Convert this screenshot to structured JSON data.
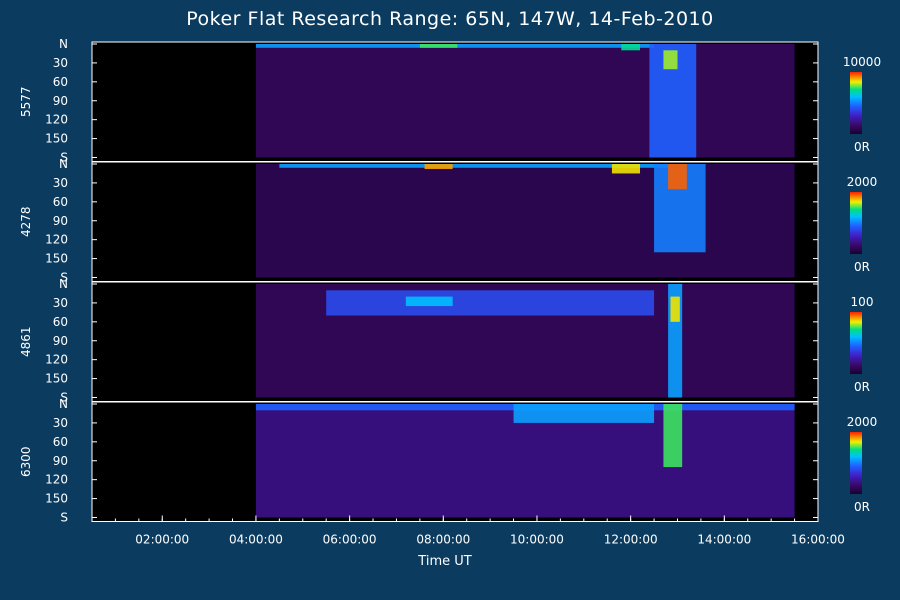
{
  "title": "Poker Flat Research Range: 65N, 147W, 14-Feb-2010",
  "chart_data": {
    "type": "heatmap",
    "title": "Poker Flat Research Range: 65N, 147W, 14-Feb-2010",
    "xlabel": "Time UT",
    "x_ticks": [
      "02:00:00",
      "04:00:00",
      "06:00:00",
      "08:00:00",
      "10:00:00",
      "12:00:00",
      "14:00:00",
      "16:00:00"
    ],
    "x_range_hours": [
      0.5,
      16.0
    ],
    "data_start_hour": 4.0,
    "y_ticks": [
      "N",
      "30",
      "60",
      "90",
      "120",
      "150",
      "S"
    ],
    "y_tick_values": [
      0,
      30,
      60,
      90,
      120,
      150,
      180
    ],
    "y_range": [
      0,
      180
    ],
    "colorbar_min_label": "0R",
    "panels": [
      {
        "wavelength": "5577",
        "scale_max": "10000",
        "features": [
          {
            "t0": 4.0,
            "t1": 15.5,
            "y0": 0,
            "y1": 180,
            "level": 0.12
          },
          {
            "t0": 4.0,
            "t1": 12.5,
            "y0": 0,
            "y1": 6,
            "level": 0.55
          },
          {
            "t0": 7.5,
            "t1": 8.3,
            "y0": 0,
            "y1": 6,
            "level": 0.75
          },
          {
            "t0": 11.8,
            "t1": 12.2,
            "y0": 0,
            "y1": 10,
            "level": 0.7
          },
          {
            "t0": 12.4,
            "t1": 13.4,
            "y0": 0,
            "y1": 180,
            "level": 0.45
          },
          {
            "t0": 12.7,
            "t1": 13.0,
            "y0": 10,
            "y1": 40,
            "level": 0.8
          }
        ]
      },
      {
        "wavelength": "4278",
        "scale_max": "2000",
        "features": [
          {
            "t0": 4.0,
            "t1": 15.5,
            "y0": 0,
            "y1": 180,
            "level": 0.1
          },
          {
            "t0": 4.5,
            "t1": 12.8,
            "y0": 0,
            "y1": 6,
            "level": 0.55
          },
          {
            "t0": 7.6,
            "t1": 8.2,
            "y0": 0,
            "y1": 8,
            "level": 0.9
          },
          {
            "t0": 11.6,
            "t1": 12.2,
            "y0": 0,
            "y1": 15,
            "level": 0.85
          },
          {
            "t0": 12.5,
            "t1": 13.6,
            "y0": 0,
            "y1": 140,
            "level": 0.5
          },
          {
            "t0": 12.8,
            "t1": 13.2,
            "y0": 0,
            "y1": 40,
            "level": 0.95
          }
        ]
      },
      {
        "wavelength": "4861",
        "scale_max": "100",
        "features": [
          {
            "t0": 4.0,
            "t1": 15.5,
            "y0": 0,
            "y1": 180,
            "level": 0.12
          },
          {
            "t0": 5.5,
            "t1": 12.5,
            "y0": 10,
            "y1": 50,
            "level": 0.4
          },
          {
            "t0": 7.2,
            "t1": 8.2,
            "y0": 20,
            "y1": 35,
            "level": 0.6
          },
          {
            "t0": 12.8,
            "t1": 13.1,
            "y0": 0,
            "y1": 180,
            "level": 0.55
          },
          {
            "t0": 12.85,
            "t1": 13.05,
            "y0": 20,
            "y1": 60,
            "level": 0.85
          }
        ]
      },
      {
        "wavelength": "6300",
        "scale_max": "2000",
        "features": [
          {
            "t0": 4.0,
            "t1": 15.5,
            "y0": 0,
            "y1": 180,
            "level": 0.2
          },
          {
            "t0": 4.0,
            "t1": 15.5,
            "y0": 0,
            "y1": 10,
            "level": 0.45
          },
          {
            "t0": 9.5,
            "t1": 12.5,
            "y0": 0,
            "y1": 30,
            "level": 0.55
          },
          {
            "t0": 12.7,
            "t1": 13.1,
            "y0": 0,
            "y1": 100,
            "level": 0.75
          }
        ]
      }
    ]
  }
}
